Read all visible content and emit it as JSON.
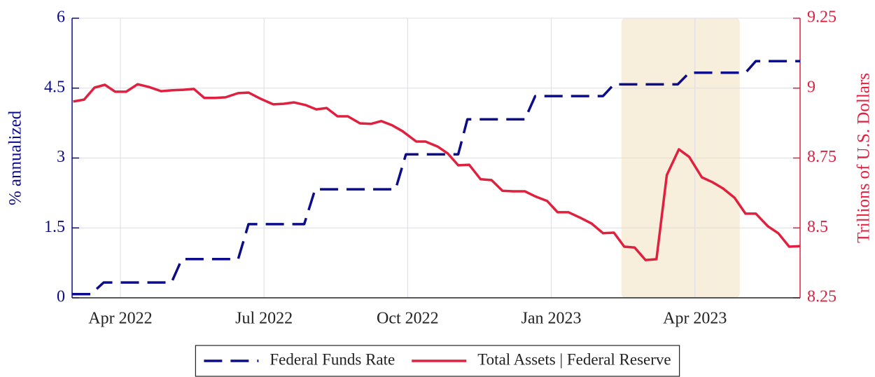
{
  "chart_data": {
    "type": "line",
    "ylabel": "% annualized",
    "y2label": "Trillions of U.S. Dollars",
    "xlim": [
      2022.166,
      2023.433
    ],
    "xticks": [
      {
        "value": 2022.25,
        "label": "Apr 2022"
      },
      {
        "value": 2022.5,
        "label": "Jul 2022"
      },
      {
        "value": 2022.75,
        "label": "Oct 2022"
      },
      {
        "value": 2023.0,
        "label": "Jan 2023"
      },
      {
        "value": 2023.25,
        "label": "Apr 2023"
      }
    ],
    "ylim": [
      0,
      6
    ],
    "yticks": [
      0,
      1.5,
      3,
      4.5,
      6
    ],
    "y2lim": [
      8.25,
      9.25
    ],
    "y2ticks": [
      8.25,
      8.5,
      8.75,
      9,
      9.25
    ],
    "grid": true,
    "legend": "bottom",
    "shaded_region": {
      "xlim": [
        2023.122,
        2023.328
      ],
      "color": "#f7eedb"
    },
    "series": [
      {
        "name": "Federal Funds Rate",
        "color": "#0c0c8a",
        "line_style": "dashed",
        "axis": "y",
        "x": [
          2022.166,
          2022.199,
          2022.221,
          2022.339,
          2022.357,
          2022.455,
          2022.473,
          2022.57,
          2022.589,
          2022.729,
          2022.747,
          2022.838,
          2022.854,
          2022.954,
          2022.972,
          2023.09,
          2023.109,
          2023.22,
          2023.24,
          2023.338,
          2023.356,
          2023.433
        ],
        "values": [
          0.08,
          0.08,
          0.33,
          0.33,
          0.83,
          0.83,
          1.58,
          1.58,
          2.33,
          2.33,
          3.08,
          3.08,
          3.83,
          3.83,
          4.33,
          4.33,
          4.58,
          4.58,
          4.83,
          4.83,
          5.08,
          5.08
        ]
      },
      {
        "name": "Total Assets | Federal Reserve",
        "color": "#e0203f",
        "line_style": "solid",
        "axis": "y2",
        "x": [
          2022.168,
          2022.187,
          2022.205,
          2022.223,
          2022.241,
          2022.26,
          2022.28,
          2022.3,
          2022.321,
          2022.339,
          2022.36,
          2022.378,
          2022.396,
          2022.414,
          2022.433,
          2022.455,
          2022.473,
          2022.494,
          2022.516,
          2022.534,
          2022.552,
          2022.573,
          2022.591,
          2022.609,
          2022.628,
          2022.646,
          2022.667,
          2022.686,
          2022.704,
          2022.723,
          2022.741,
          2022.765,
          2022.781,
          2022.802,
          2022.82,
          2022.838,
          2022.857,
          2022.877,
          2022.896,
          2022.915,
          2022.933,
          2022.954,
          2022.972,
          2022.993,
          2023.011,
          2023.03,
          2023.051,
          2023.07,
          2023.09,
          2023.109,
          2023.127,
          2023.145,
          2023.164,
          2023.183,
          2023.201,
          2023.222,
          2023.24,
          2023.262,
          2023.28,
          2023.299,
          2023.319,
          2023.338,
          2023.356,
          2023.377,
          2023.395,
          2023.414,
          2023.433
        ],
        "values": [
          8.952,
          8.959,
          9.002,
          9.012,
          8.987,
          8.987,
          9.014,
          9.004,
          8.989,
          8.992,
          8.994,
          8.997,
          8.965,
          8.965,
          8.967,
          8.982,
          8.984,
          8.962,
          8.942,
          8.944,
          8.949,
          8.939,
          8.924,
          8.929,
          8.899,
          8.899,
          8.874,
          8.872,
          8.882,
          8.867,
          8.846,
          8.809,
          8.809,
          8.791,
          8.766,
          8.724,
          8.726,
          8.674,
          8.671,
          8.633,
          8.631,
          8.631,
          8.613,
          8.596,
          8.556,
          8.556,
          8.536,
          8.516,
          8.481,
          8.483,
          8.433,
          8.43,
          8.385,
          8.388,
          8.689,
          8.781,
          8.754,
          8.681,
          8.664,
          8.641,
          8.608,
          8.551,
          8.551,
          8.506,
          8.481,
          8.433,
          8.435
        ]
      }
    ]
  }
}
